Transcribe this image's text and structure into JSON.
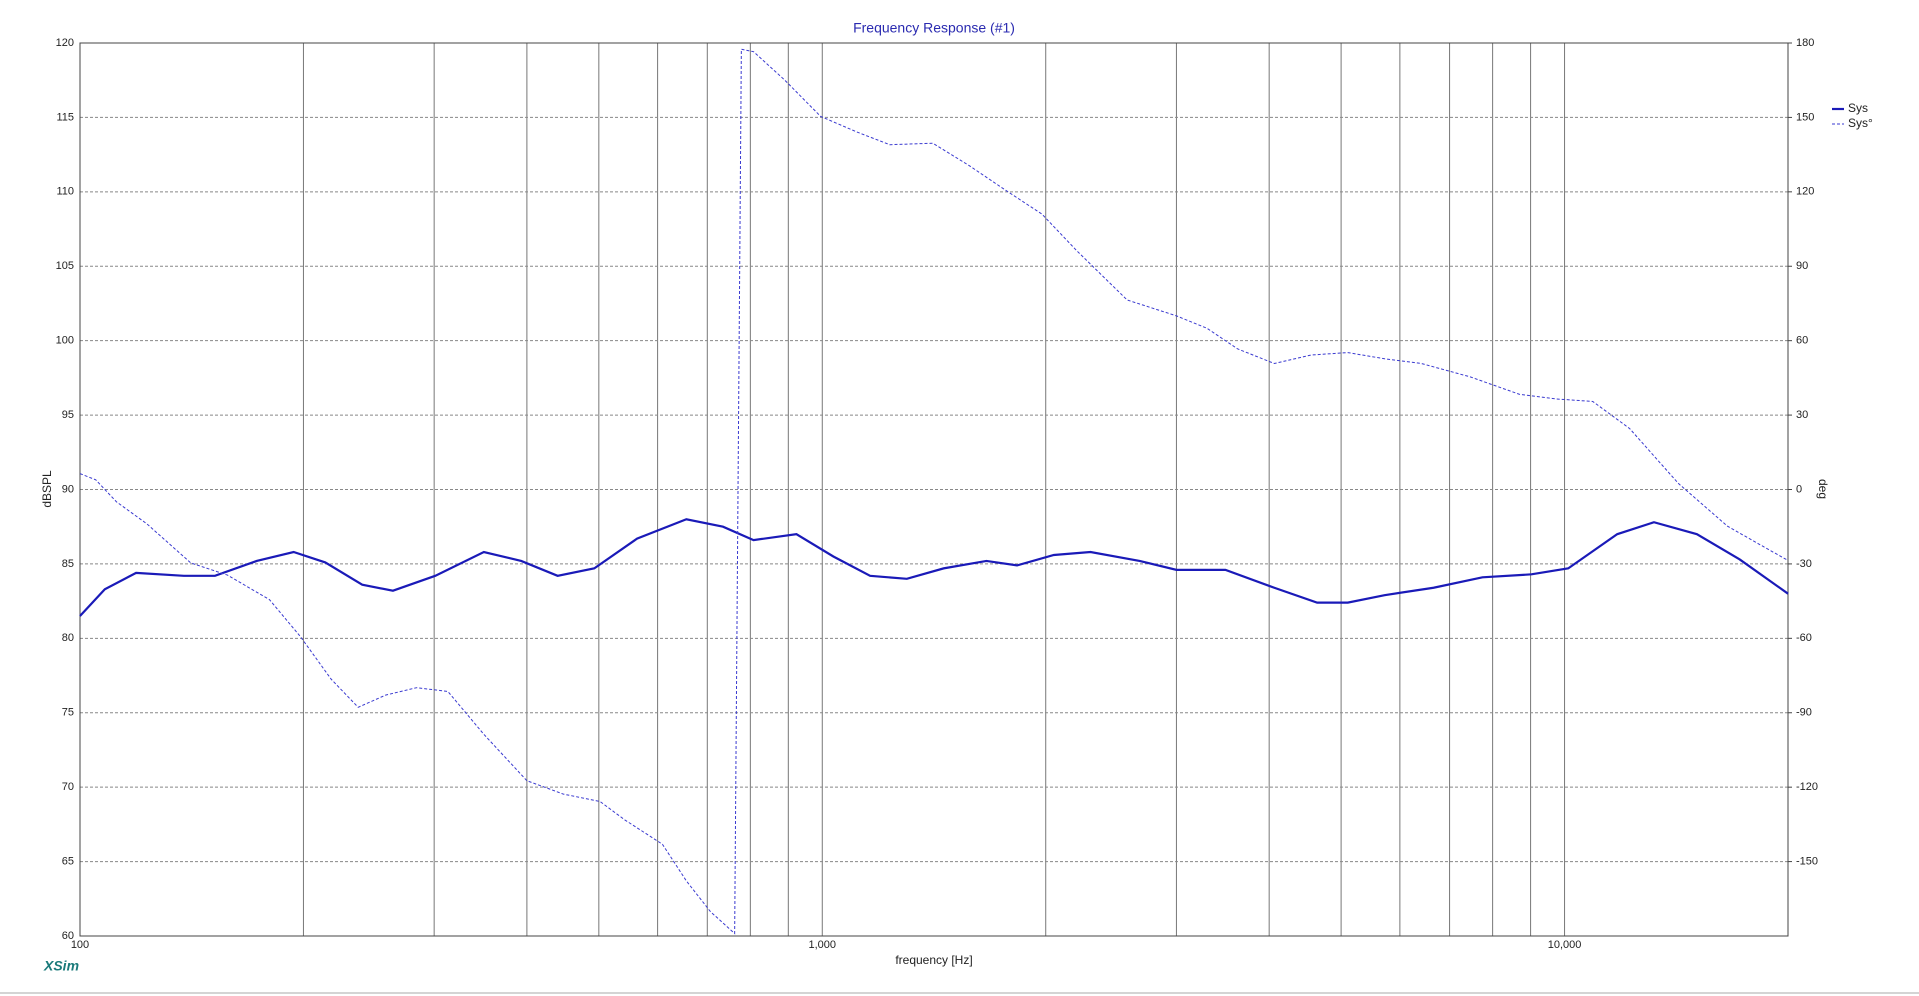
{
  "brand": "XSim",
  "chart_data": {
    "type": "line",
    "title": "Frequency Response (#1)",
    "x_label": "frequency [Hz]",
    "y_label": "dBSPL",
    "y2_label": "deg",
    "xscale": "log",
    "xlim": [
      100,
      20000
    ],
    "xticks": [
      100,
      {
        "value": 1000,
        "label": "1,000"
      },
      {
        "value": 10000,
        "label": "10,000"
      }
    ],
    "xminorticks": [
      200,
      300,
      400,
      500,
      600,
      700,
      800,
      900,
      2000,
      3000,
      4000,
      5000,
      6000,
      7000,
      8000,
      9000
    ],
    "ylim": [
      60,
      120
    ],
    "yticks": [
      60,
      65,
      70,
      75,
      80,
      85,
      90,
      95,
      100,
      105,
      110,
      115,
      120
    ],
    "y2lim": [
      -180,
      180
    ],
    "y2ticks": [
      -150,
      -120,
      -90,
      -60,
      -30,
      0,
      30,
      60,
      90,
      120,
      150,
      180
    ],
    "grid": true,
    "legend": "upper right",
    "series": [
      {
        "name": "Sys",
        "color": "#1a1ab8",
        "style": "solid",
        "x": [
          100,
          108,
          119,
          138,
          152,
          173,
          194,
          214,
          240,
          264,
          301,
          350,
          393,
          440,
          493,
          563,
          656,
          735,
          808,
          923,
          1035,
          1160,
          1300,
          1457,
          1664,
          1830,
          2051,
          2298,
          2676,
          3000,
          3492,
          4064,
          4642,
          5105,
          5722,
          6661,
          7752,
          9024,
          10115,
          11776,
          13196,
          15076,
          17219,
          20000
        ],
        "values": [
          81.5,
          83.3,
          84.4,
          84.2,
          84.2,
          85.2,
          85.8,
          85.1,
          83.6,
          83.2,
          84.2,
          85.8,
          85.2,
          84.2,
          84.7,
          86.7,
          88.0,
          87.5,
          86.6,
          87.0,
          85.5,
          84.2,
          84.0,
          84.7,
          85.2,
          84.9,
          85.6,
          85.8,
          85.2,
          84.6,
          84.6,
          83.4,
          82.4,
          82.4,
          82.9,
          83.4,
          84.1,
          84.3,
          84.7,
          87.0,
          87.8,
          87.0,
          85.3,
          83.0
        ]
      },
      {
        "name": "Sys°",
        "color": "#3a3ad0",
        "style": "dashed",
        "axis": "y2",
        "x": [
          100,
          105,
          112,
          123,
          141,
          158,
          180,
          198,
          218,
          237,
          258,
          284,
          313,
          350,
          400,
          448,
          502,
          542,
          609,
          656,
          707,
          762,
          778,
          808,
          889,
          995,
          1116,
          1233,
          1409,
          1575,
          1763,
          1977,
          2203,
          2575,
          3000,
          3298,
          3626,
          4064,
          4553,
          5105,
          5722,
          6412,
          7464,
          8690,
          9737,
          10914,
          12234,
          14240,
          16578,
          18578,
          20000
        ],
        "values": [
          6.4,
          3.9,
          -5,
          -13.8,
          -29.6,
          -34.5,
          -44.4,
          -59.2,
          -76.5,
          -87.8,
          -82.9,
          -79.9,
          -81.4,
          -98.7,
          -117.4,
          -122.8,
          -125.8,
          -133.2,
          -143,
          -157.8,
          -170.2,
          -179,
          177.5,
          176.5,
          165.2,
          150.4,
          144,
          139,
          139.6,
          130.7,
          120.8,
          111,
          96.2,
          76.4,
          70,
          65,
          56.7,
          50.8,
          54.2,
          55.2,
          52.7,
          50.8,
          45.4,
          38.4,
          36.5,
          35.5,
          24.6,
          2.4,
          -14.8,
          -23.2,
          -28.6
        ]
      }
    ]
  }
}
